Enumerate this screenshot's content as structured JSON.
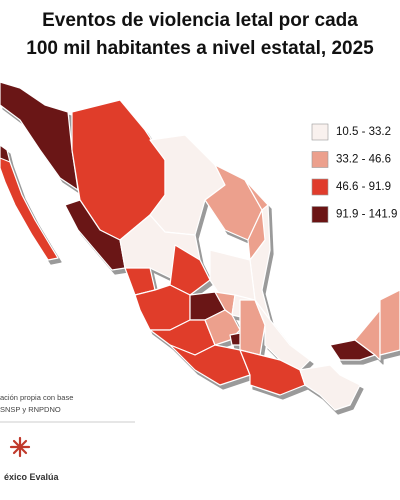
{
  "title": [
    "Eventos de violencia letal por cada",
    "100 mil habitantes a nivel estatal, 2025"
  ],
  "legend": [
    {
      "label": "10.5 - 33.2",
      "color": "#f9f1ee"
    },
    {
      "label": "33.2 - 46.6",
      "color": "#eca08d"
    },
    {
      "label": "46.6 - 91.9",
      "color": "#e03c2c"
    },
    {
      "label": "91.9 - 141.9",
      "color": "#6b1414"
    }
  ],
  "source": [
    "ación propia con base",
    "SNSP y RNPDNO"
  ],
  "logo": "éxico Evalúa"
}
